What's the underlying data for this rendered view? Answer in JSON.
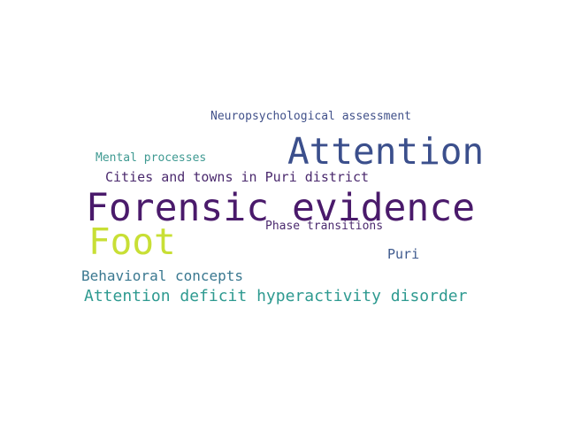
{
  "words": [
    {
      "text": "Forensic evidence",
      "color": "#4a1a6b"
    },
    {
      "text": "Attention",
      "color": "#3b4f8c"
    },
    {
      "text": "Foot",
      "color": "#c8df35"
    },
    {
      "text": "Attention deficit hyperactivity disorder",
      "color": "#2e9a90"
    },
    {
      "text": "Behavioral concepts",
      "color": "#3a7890"
    },
    {
      "text": "Cities and towns in Puri district",
      "color": "#4b2a6e"
    },
    {
      "text": "Neuropsychological assessment",
      "color": "#41518a"
    },
    {
      "text": "Mental processes",
      "color": "#3f9a92"
    },
    {
      "text": "Phase transitions",
      "color": "#4b2a6e"
    },
    {
      "text": "Puri",
      "color": "#3f5a8e"
    }
  ]
}
